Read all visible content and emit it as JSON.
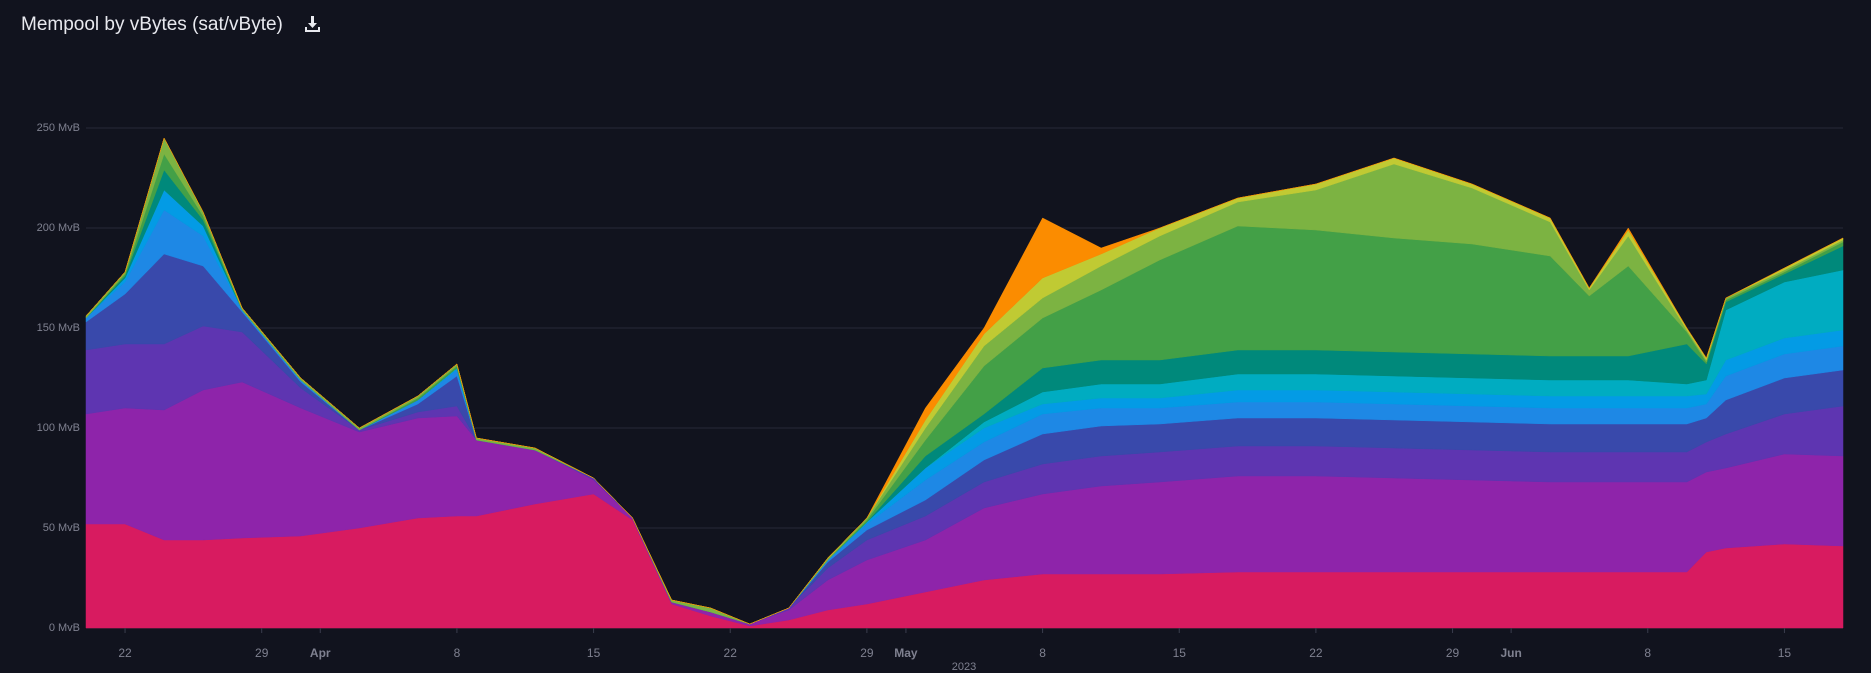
{
  "chart_data": {
    "type": "stacked-area",
    "title": "Mempool by vBytes (sat/vByte)",
    "xlabel": "2023",
    "x": [
      "2023-03-20",
      "2023-03-22",
      "2023-03-24",
      "2023-03-26",
      "2023-03-28",
      "2023-03-31",
      "2023-04-03",
      "2023-04-06",
      "2023-04-08",
      "2023-04-09",
      "2023-04-12",
      "2023-04-15",
      "2023-04-17",
      "2023-04-19",
      "2023-04-21",
      "2023-04-23",
      "2023-04-25",
      "2023-04-27",
      "2023-04-29",
      "2023-05-02",
      "2023-05-05",
      "2023-05-08",
      "2023-05-11",
      "2023-05-14",
      "2023-05-18",
      "2023-05-22",
      "2023-05-26",
      "2023-05-30",
      "2023-06-03",
      "2023-06-05",
      "2023-06-07",
      "2023-06-10",
      "2023-06-11",
      "2023-06-12",
      "2023-06-15",
      "2023-06-18"
    ],
    "xlim": [
      "2023-03-20",
      "2023-06-18"
    ],
    "xticks": [
      {
        "value": "2023-03-22",
        "label": "22"
      },
      {
        "value": "2023-03-29",
        "label": "29"
      },
      {
        "value": "2023-04-01",
        "label": "Apr"
      },
      {
        "value": "2023-04-08",
        "label": "8"
      },
      {
        "value": "2023-04-15",
        "label": "15"
      },
      {
        "value": "2023-04-22",
        "label": "22"
      },
      {
        "value": "2023-04-29",
        "label": "29"
      },
      {
        "value": "2023-05-01",
        "label": "May"
      },
      {
        "value": "2023-05-08",
        "label": "8"
      },
      {
        "value": "2023-05-15",
        "label": "15"
      },
      {
        "value": "2023-05-22",
        "label": "22"
      },
      {
        "value": "2023-05-29",
        "label": "29"
      },
      {
        "value": "2023-06-01",
        "label": "Jun"
      },
      {
        "value": "2023-06-08",
        "label": "8"
      },
      {
        "value": "2023-06-15",
        "label": "15"
      }
    ],
    "ylim": [
      0,
      250
    ],
    "yticks": [
      {
        "value": 0,
        "label": "0 MvB"
      },
      {
        "value": 50,
        "label": "50 MvB"
      },
      {
        "value": 100,
        "label": "100 MvB"
      },
      {
        "value": 150,
        "label": "150 MvB"
      },
      {
        "value": 200,
        "label": "200 MvB"
      },
      {
        "value": 250,
        "label": "250 MvB"
      }
    ],
    "grid": true,
    "series": [
      {
        "color": "#d81b60",
        "values": [
          52,
          52,
          44,
          44,
          45,
          46,
          50,
          55,
          56,
          56,
          62,
          67,
          54,
          12,
          6,
          1,
          4,
          9,
          12,
          18,
          24,
          27,
          27,
          27,
          28,
          28,
          28,
          28,
          28,
          28,
          28,
          28,
          38,
          40,
          42,
          41
        ]
      },
      {
        "color": "#8e24aa",
        "values": [
          55,
          58,
          65,
          75,
          78,
          64,
          48,
          50,
          50,
          38,
          27,
          7,
          1,
          1,
          2,
          1,
          5,
          15,
          22,
          26,
          36,
          40,
          44,
          46,
          48,
          48,
          47,
          46,
          45,
          45,
          45,
          45,
          40,
          40,
          45,
          45
        ]
      },
      {
        "color": "#5e35b1",
        "values": [
          32,
          32,
          33,
          32,
          25,
          10,
          1,
          3,
          5,
          0,
          0,
          1,
          0,
          0,
          0,
          0,
          1,
          6,
          10,
          12,
          13,
          15,
          15,
          15,
          15,
          15,
          15,
          15,
          15,
          15,
          15,
          15,
          15,
          17,
          20,
          25
        ]
      },
      {
        "color": "#3949ab",
        "values": [
          14,
          25,
          45,
          30,
          10,
          3,
          0,
          4,
          15,
          0,
          0,
          0,
          0,
          0,
          0,
          0,
          0,
          3,
          5,
          8,
          11,
          15,
          15,
          14,
          14,
          14,
          14,
          14,
          14,
          14,
          14,
          14,
          12,
          17,
          18,
          18
        ]
      },
      {
        "color": "#1e88e5",
        "values": [
          2,
          6,
          22,
          15,
          1,
          1,
          0,
          2,
          3,
          0,
          0,
          0,
          0,
          0,
          0,
          0,
          0,
          1,
          3,
          10,
          9,
          10,
          9,
          8,
          8,
          8,
          8,
          8,
          8,
          8,
          8,
          8,
          7,
          12,
          12,
          12
        ]
      },
      {
        "color": "#039be5",
        "values": [
          0,
          2,
          10,
          5,
          0,
          0,
          0,
          0,
          1,
          0,
          0,
          0,
          0,
          0,
          0,
          0,
          0,
          0,
          1,
          6,
          7,
          5,
          5,
          5,
          6,
          6,
          6,
          6,
          6,
          6,
          6,
          6,
          5,
          8,
          8,
          8
        ]
      },
      {
        "color": "#00acc1",
        "values": [
          0,
          0,
          0,
          0,
          0,
          0,
          0,
          0,
          0,
          0,
          0,
          0,
          0,
          0,
          0,
          0,
          0,
          0,
          0,
          0,
          3,
          6,
          7,
          7,
          8,
          8,
          8,
          8,
          8,
          8,
          8,
          6,
          7,
          25,
          28,
          30
        ]
      },
      {
        "color": "#00897b",
        "values": [
          0,
          1,
          10,
          3,
          0,
          0,
          0,
          0,
          0,
          0,
          0,
          0,
          0,
          0,
          0,
          0,
          0,
          0,
          0,
          6,
          4,
          12,
          12,
          12,
          12,
          12,
          12,
          12,
          12,
          12,
          12,
          20,
          8,
          4,
          4,
          12
        ]
      },
      {
        "color": "#43a047",
        "values": [
          0,
          1,
          8,
          2,
          0,
          0,
          0,
          1,
          1,
          0,
          0,
          0,
          0,
          0,
          0,
          0,
          0,
          0,
          1,
          8,
          24,
          25,
          35,
          50,
          62,
          60,
          57,
          55,
          50,
          30,
          45,
          6,
          1,
          1,
          1,
          2
        ]
      },
      {
        "color": "#7cb342",
        "values": [
          1,
          1,
          8,
          2,
          1,
          1,
          1,
          1,
          1,
          1,
          1,
          0,
          0,
          1,
          2,
          0,
          0,
          1,
          1,
          6,
          10,
          10,
          12,
          12,
          12,
          20,
          37,
          28,
          17,
          3,
          15,
          1,
          1,
          1,
          1,
          1
        ]
      },
      {
        "color": "#c0ca33",
        "values": [
          0,
          0,
          0,
          0,
          0,
          0,
          0,
          0,
          0,
          0,
          0,
          0,
          0,
          0,
          0,
          0,
          0,
          0,
          0,
          4,
          6,
          10,
          6,
          4,
          2,
          3,
          3,
          2,
          2,
          1,
          3,
          1,
          1,
          0,
          1,
          1
        ]
      },
      {
        "color": "#fb8c00",
        "values": [
          0,
          0,
          0,
          0,
          0,
          0,
          0,
          0,
          0,
          0,
          0,
          0,
          0,
          0,
          0,
          0,
          0,
          0,
          0,
          6,
          3,
          30,
          3,
          0,
          0,
          0,
          0,
          0,
          0,
          0,
          1,
          0,
          0,
          0,
          0,
          0
        ]
      }
    ]
  }
}
